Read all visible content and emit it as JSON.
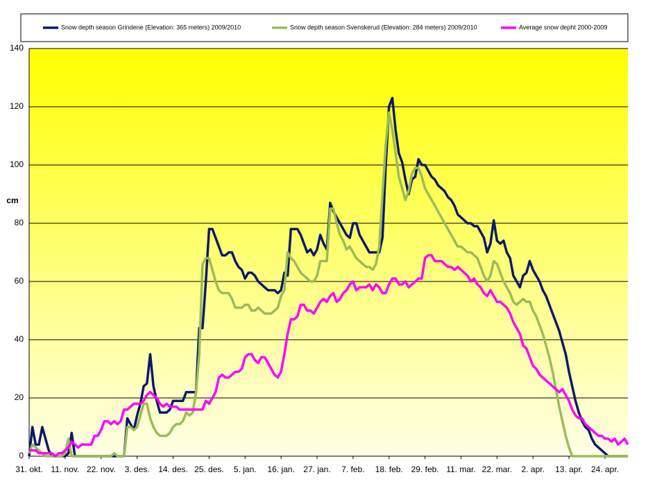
{
  "chart_data": {
    "type": "line",
    "y_label": "cm",
    "ylim": [
      0,
      140
    ],
    "yticks": [
      0,
      20,
      40,
      60,
      80,
      100,
      120,
      140
    ],
    "grid": true,
    "categories": [
      "31. okt.",
      null,
      null,
      null,
      null,
      null,
      null,
      null,
      null,
      null,
      null,
      "11. nov.",
      null,
      null,
      null,
      null,
      null,
      null,
      null,
      null,
      null,
      null,
      "22. nov.",
      null,
      null,
      null,
      null,
      null,
      null,
      null,
      null,
      null,
      null,
      "3. des.",
      null,
      null,
      null,
      null,
      null,
      null,
      null,
      null,
      null,
      null,
      "14. des.",
      null,
      null,
      null,
      null,
      null,
      null,
      null,
      null,
      null,
      null,
      "25. des.",
      null,
      null,
      null,
      null,
      null,
      null,
      null,
      null,
      null,
      null,
      "5. jan.",
      null,
      null,
      null,
      null,
      null,
      null,
      null,
      null,
      null,
      null,
      "16. jan.",
      null,
      null,
      null,
      null,
      null,
      null,
      null,
      null,
      null,
      null,
      "27. jan.",
      null,
      null,
      null,
      null,
      null,
      null,
      null,
      null,
      null,
      null,
      "7. feb.",
      null,
      null,
      null,
      null,
      null,
      null,
      null,
      null,
      null,
      null,
      "18. feb.",
      null,
      null,
      null,
      null,
      null,
      null,
      null,
      null,
      null,
      null,
      "29. feb.",
      null,
      null,
      null,
      null,
      null,
      null,
      null,
      null,
      null,
      null,
      "11. mar.",
      null,
      null,
      null,
      null,
      null,
      null,
      null,
      null,
      null,
      null,
      "22. mar.",
      null,
      null,
      null,
      null,
      null,
      null,
      null,
      null,
      null,
      null,
      "2. apr.",
      null,
      null,
      null,
      null,
      null,
      null,
      null,
      null,
      null,
      null,
      "13. apr.",
      null,
      null,
      null,
      null,
      null,
      null,
      null,
      null,
      null,
      null,
      "24. apr.",
      null,
      null,
      null,
      null,
      null,
      null,
      null
    ],
    "series": [
      {
        "name": "Snow depth season Grindene (Elevation: 365 meters) 2009/2010",
        "color": "#0b1a6b",
        "values": [
          0,
          10,
          4,
          4,
          10,
          6,
          2,
          0,
          0,
          0,
          0,
          0,
          1,
          8,
          0,
          0,
          0,
          0,
          0,
          0,
          0,
          0,
          0,
          0,
          0,
          0,
          0,
          0,
          0,
          0,
          13,
          11,
          9,
          14,
          18,
          24,
          25,
          35,
          24,
          19,
          15,
          15,
          15,
          16,
          19,
          19,
          19,
          19,
          22,
          22,
          22,
          22,
          44,
          44,
          60,
          78,
          78,
          75,
          72,
          69,
          69,
          70,
          70,
          67,
          65,
          64,
          61,
          63,
          63,
          62,
          60,
          59,
          58,
          57,
          57,
          57,
          56,
          57,
          63,
          62,
          78,
          78,
          78,
          76,
          73,
          70,
          71,
          69,
          71,
          76,
          73,
          71,
          87,
          84,
          82,
          80,
          78,
          76,
          75,
          80,
          80,
          76,
          74,
          72,
          70,
          70,
          70,
          70,
          75,
          100,
          120,
          123,
          112,
          104,
          101,
          95,
          90,
          95,
          96,
          102,
          100,
          100,
          98,
          96,
          95,
          93,
          92,
          91,
          89,
          88,
          86,
          83,
          82,
          81,
          80,
          80,
          79,
          79,
          77,
          75,
          70,
          73,
          81,
          74,
          73,
          74,
          70,
          68,
          62,
          60,
          58,
          62,
          63,
          67,
          64,
          62,
          60,
          57,
          55,
          52,
          49,
          46,
          43,
          39,
          35,
          29,
          24,
          19,
          15,
          12,
          10,
          9,
          6,
          4,
          3,
          2,
          1,
          0,
          0,
          0,
          0,
          0,
          0,
          0
        ]
      },
      {
        "name": "Snow depth season Svenskerud (Elevation: 284 meters) 2009/2010",
        "color": "#9bbb59",
        "values": [
          1,
          4,
          3,
          2,
          1,
          0,
          0,
          0,
          0,
          0,
          0,
          1,
          6,
          0,
          0,
          0,
          0,
          0,
          0,
          0,
          0,
          0,
          0,
          0,
          0,
          0,
          1,
          0,
          0,
          0,
          10,
          10,
          9,
          10,
          14,
          18,
          18,
          13,
          10,
          8,
          7,
          7,
          7,
          8,
          10,
          11,
          11,
          12,
          15,
          14,
          15,
          22,
          35,
          66,
          68,
          68,
          64,
          60,
          57,
          56,
          56,
          56,
          54,
          51,
          51,
          51,
          52,
          52,
          50,
          50,
          51,
          50,
          49,
          49,
          49,
          50,
          51,
          55,
          57,
          70,
          68,
          67,
          65,
          63,
          62,
          61,
          60,
          60,
          62,
          67,
          67,
          67,
          85,
          85,
          80,
          76,
          74,
          71,
          72,
          70,
          68,
          67,
          66,
          65,
          65,
          64,
          66,
          72,
          90,
          107,
          118,
          112,
          104,
          96,
          92,
          88,
          91,
          97,
          99,
          99,
          96,
          92,
          90,
          88,
          86,
          84,
          82,
          80,
          78,
          76,
          74,
          72,
          72,
          71,
          70,
          70,
          69,
          68,
          65,
          62,
          60,
          62,
          67,
          66,
          63,
          60,
          58,
          56,
          53,
          52,
          53,
          54,
          53,
          53,
          50,
          48,
          45,
          42,
          38,
          34,
          29,
          23,
          17,
          12,
          7,
          3,
          0,
          0,
          0,
          0,
          0,
          0,
          0,
          0,
          0,
          0,
          0,
          0,
          0,
          0,
          0,
          0,
          0,
          0
        ]
      },
      {
        "name": "Average snow depht 2000-2009",
        "color": "#ff00ff",
        "values": [
          2,
          2,
          2,
          1,
          1,
          1,
          1,
          1,
          0,
          1,
          1,
          2,
          3,
          5,
          4,
          3,
          4,
          4,
          4,
          4,
          7,
          7,
          9,
          12,
          12,
          11,
          12,
          11,
          12,
          16,
          16,
          17,
          18,
          18,
          18,
          19,
          21,
          22,
          21,
          20,
          18,
          17,
          18,
          17,
          17,
          17,
          16,
          16,
          16,
          16,
          16,
          16,
          16,
          16,
          19,
          18,
          20,
          22,
          27,
          28,
          27,
          27,
          28,
          29,
          29,
          30,
          34,
          35,
          35,
          33,
          32,
          34,
          34,
          32,
          30,
          28,
          27,
          29,
          35,
          42,
          47,
          47,
          48,
          52,
          52,
          50,
          50,
          49,
          51,
          53,
          54,
          53,
          55,
          56,
          53,
          54,
          56,
          57,
          59,
          60,
          57,
          58,
          58,
          58,
          59,
          57,
          59,
          58,
          56,
          56,
          59,
          61,
          61,
          59,
          59,
          60,
          58,
          59,
          60,
          61,
          61,
          68,
          69,
          69,
          67,
          67,
          67,
          66,
          65,
          65,
          64,
          65,
          64,
          63,
          62,
          60,
          61,
          59,
          58,
          56,
          55,
          57,
          55,
          53,
          53,
          52,
          51,
          49,
          46,
          44,
          42,
          38,
          37,
          34,
          31,
          30,
          28,
          27,
          26,
          25,
          24,
          23,
          22,
          23,
          21,
          19,
          16,
          14,
          13,
          13,
          11,
          10,
          9,
          8,
          7,
          7,
          6,
          6,
          5,
          6,
          4,
          5,
          6,
          4
        ]
      }
    ]
  }
}
